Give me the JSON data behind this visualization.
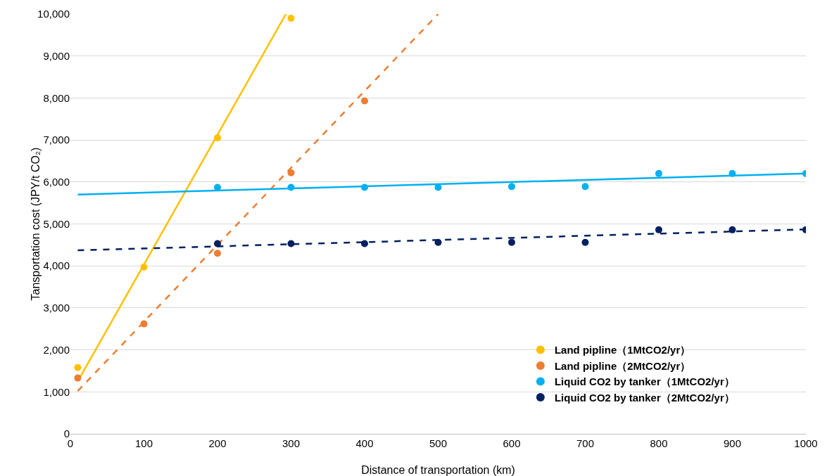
{
  "chart_data": {
    "type": "scatter",
    "xlabel": "Distance of transportation (km)",
    "ylabel": "Tansportation cost (JPY/t CO₂)",
    "xlim": [
      0,
      1000
    ],
    "xticks": [
      0,
      100,
      200,
      300,
      400,
      500,
      600,
      700,
      800,
      900,
      1000
    ],
    "ylim": [
      0,
      10000
    ],
    "yticks": [
      0,
      {
        "value": 1000,
        "label": "1,000"
      },
      {
        "value": 2000,
        "label": "2,000"
      },
      {
        "value": 3000,
        "label": "3,000"
      },
      {
        "value": 4000,
        "label": "4,000"
      },
      {
        "value": 5000,
        "label": "5,000"
      },
      {
        "value": 6000,
        "label": "6,000"
      },
      {
        "value": 7000,
        "label": "7,000"
      },
      {
        "value": 8000,
        "label": "8,000"
      },
      {
        "value": 9000,
        "label": "9,000"
      },
      {
        "value": 10000,
        "label": "10,000"
      }
    ],
    "grid": "y",
    "legend": "bottom right",
    "series": [
      {
        "type": "line",
        "color": "#ffc000",
        "line_style": "solid",
        "marker": "none",
        "x": [
          10,
          293
        ],
        "values": [
          1250,
          10000
        ]
      },
      {
        "type": "line",
        "color": "#ed7d31",
        "line_style": "dashed",
        "marker": "none",
        "x": [
          10,
          500
        ],
        "values": [
          1020,
          10000
        ]
      },
      {
        "type": "line",
        "color": "#00b0f0",
        "line_style": "solid",
        "marker": "none",
        "x": [
          10,
          1000
        ],
        "values": [
          5700,
          6200
        ]
      },
      {
        "type": "line",
        "color": "#002060",
        "line_style": "dashed",
        "marker": "none",
        "x": [
          10,
          1000
        ],
        "values": [
          4370,
          4870
        ]
      },
      {
        "name": "Land pipline（1MtCO2/yr）",
        "color": "#ffc000",
        "marker": "circle",
        "x": [
          10,
          100,
          200,
          300
        ],
        "values": [
          1580,
          3970,
          7050,
          9900
        ]
      },
      {
        "name": "Land pipline（2MtCO2/yr）",
        "color": "#ed7d31",
        "marker": "circle",
        "x": [
          10,
          100,
          200,
          300,
          400
        ],
        "values": [
          1330,
          2620,
          4300,
          6220,
          7930
        ]
      },
      {
        "name": "Liquid CO2 by tanker（1MtCO2/yr）",
        "color": "#00b0f0",
        "marker": "circle",
        "x": [
          200,
          300,
          400,
          500,
          600,
          700,
          800,
          900,
          1000
        ],
        "values": [
          5870,
          5870,
          5870,
          5870,
          5890,
          5890,
          6200,
          6200,
          6200
        ]
      },
      {
        "name": "Liquid CO2 by tanker（2MtCO2/yr）",
        "color": "#002060",
        "marker": "circle",
        "x": [
          200,
          300,
          400,
          500,
          600,
          700,
          800,
          900,
          1000
        ],
        "values": [
          4530,
          4530,
          4530,
          4560,
          4560,
          4560,
          4860,
          4860,
          4860
        ]
      }
    ]
  }
}
